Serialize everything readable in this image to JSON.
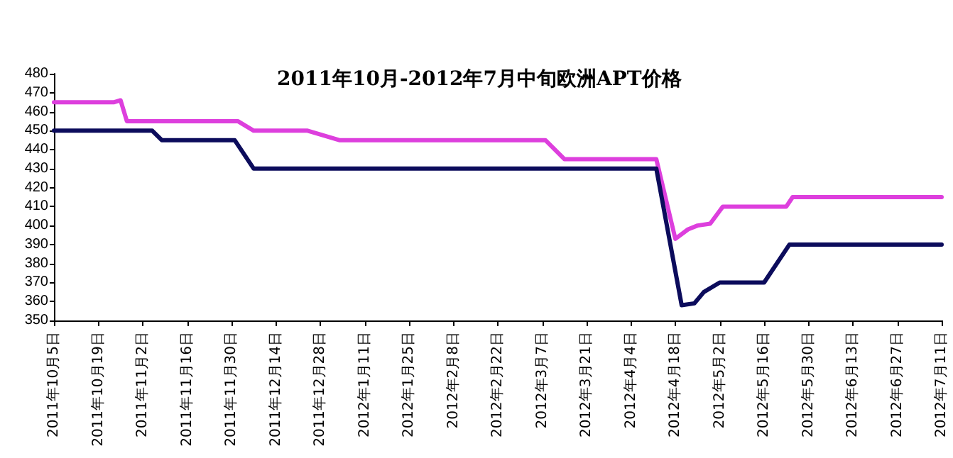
{
  "chart_data": {
    "type": "line",
    "title": "2011年10月-2012年7月中旬欧洲APT价格",
    "series": [
      {
        "color": "#dd3fdd",
        "x": [
          "2011-10-05",
          "2011-10-24",
          "2011-10-26",
          "2011-10-28",
          "2011-12-02",
          "2011-12-07",
          "2011-12-24",
          "2012-01-03",
          "2012-03-08",
          "2012-03-14",
          "2012-04-12",
          "2012-04-18",
          "2012-04-22",
          "2012-04-25",
          "2012-04-29",
          "2012-05-03",
          "2012-05-23",
          "2012-05-25",
          "2012-07-11"
        ],
        "values": [
          465,
          465,
          466,
          455,
          455,
          450,
          450,
          445,
          445,
          435,
          435,
          393,
          398,
          400,
          401,
          410,
          410,
          415,
          415
        ]
      },
      {
        "color": "#0c0c5c",
        "x": [
          "2011-10-05",
          "2011-11-05",
          "2011-11-08",
          "2011-12-01",
          "2011-12-07",
          "2012-04-12",
          "2012-04-20",
          "2012-04-24",
          "2012-04-27",
          "2012-05-02",
          "2012-05-16",
          "2012-05-24",
          "2012-07-11"
        ],
        "values": [
          450,
          450,
          445,
          445,
          430,
          430,
          358,
          359,
          365,
          370,
          370,
          390,
          390
        ]
      }
    ],
    "xlim": [
      "2011-10-05",
      "2012-07-11"
    ],
    "xticks": [
      {
        "value": "2011-10-05",
        "label": "2011年10月5日"
      },
      {
        "value": "2011-10-19",
        "label": "2011年10月19日"
      },
      {
        "value": "2011-11-02",
        "label": "2011年11月2日"
      },
      {
        "value": "2011-11-16",
        "label": "2011年11月16日"
      },
      {
        "value": "2011-11-30",
        "label": "2011年11月30日"
      },
      {
        "value": "2011-12-14",
        "label": "2011年12月14日"
      },
      {
        "value": "2011-12-28",
        "label": "2011年12月28日"
      },
      {
        "value": "2012-01-11",
        "label": "2012年1月11日"
      },
      {
        "value": "2012-01-25",
        "label": "2012年1月25日"
      },
      {
        "value": "2012-02-08",
        "label": "2012年2月8日"
      },
      {
        "value": "2012-02-22",
        "label": "2012年2月22日"
      },
      {
        "value": "2012-03-07",
        "label": "2012年3月7日"
      },
      {
        "value": "2012-03-21",
        "label": "2012年3月21日"
      },
      {
        "value": "2012-04-04",
        "label": "2012年4月4日"
      },
      {
        "value": "2012-04-18",
        "label": "2012年4月18日"
      },
      {
        "value": "2012-05-02",
        "label": "2012年5月2日"
      },
      {
        "value": "2012-05-16",
        "label": "2012年5月16日"
      },
      {
        "value": "2012-05-30",
        "label": "2012年5月30日"
      },
      {
        "value": "2012-06-13",
        "label": "2012年6月13日"
      },
      {
        "value": "2012-06-27",
        "label": "2012年6月27日"
      },
      {
        "value": "2012-07-11",
        "label": "2012年7月11日"
      }
    ],
    "ylim": [
      350,
      480
    ],
    "yticks": [
      350,
      360,
      370,
      380,
      390,
      400,
      410,
      420,
      430,
      440,
      450,
      460,
      470,
      480
    ],
    "marker": "none",
    "line_style": "solid"
  }
}
